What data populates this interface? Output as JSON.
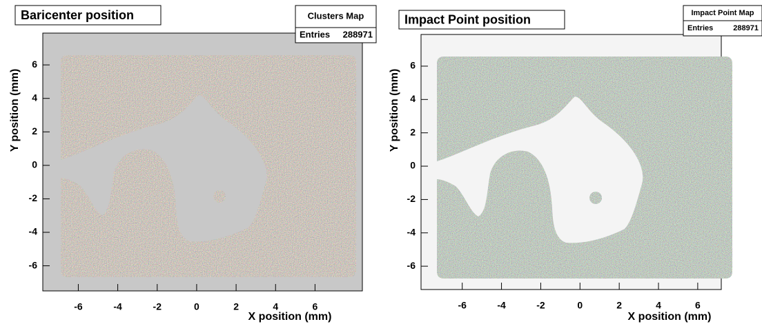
{
  "chart_data": [
    {
      "type": "density-map",
      "title": "Baricenter position",
      "stats": {
        "title": "Clusters Map",
        "entries_label": "Entries",
        "entries": 288971
      },
      "xlabel": "X position (mm)",
      "ylabel": "Y position (mm)",
      "xlim": [
        -7.8,
        8.4
      ],
      "ylim": [
        -7.5,
        7.9
      ],
      "xticks": [
        -6,
        -4,
        -2,
        0,
        2,
        4,
        6
      ],
      "yticks": [
        -6,
        -4,
        -2,
        0,
        2,
        4,
        6
      ],
      "frame_color": "#c8c8c8"
    },
    {
      "type": "density-map",
      "title": "Impact Point  position",
      "stats": {
        "title": "Impact Point Map",
        "entries_label": "Entries",
        "entries": 288971
      },
      "xlabel": "X position (mm)",
      "ylabel": "Y position (mm)",
      "xlim": [
        -8.1,
        7.2
      ],
      "ylim": [
        -7.4,
        7.9
      ],
      "xticks": [
        -6,
        -4,
        -2,
        0,
        2,
        4,
        6
      ],
      "yticks": [
        -6,
        -4,
        -2,
        0,
        2,
        4,
        6
      ],
      "frame_color": "#f4f4f4"
    }
  ]
}
